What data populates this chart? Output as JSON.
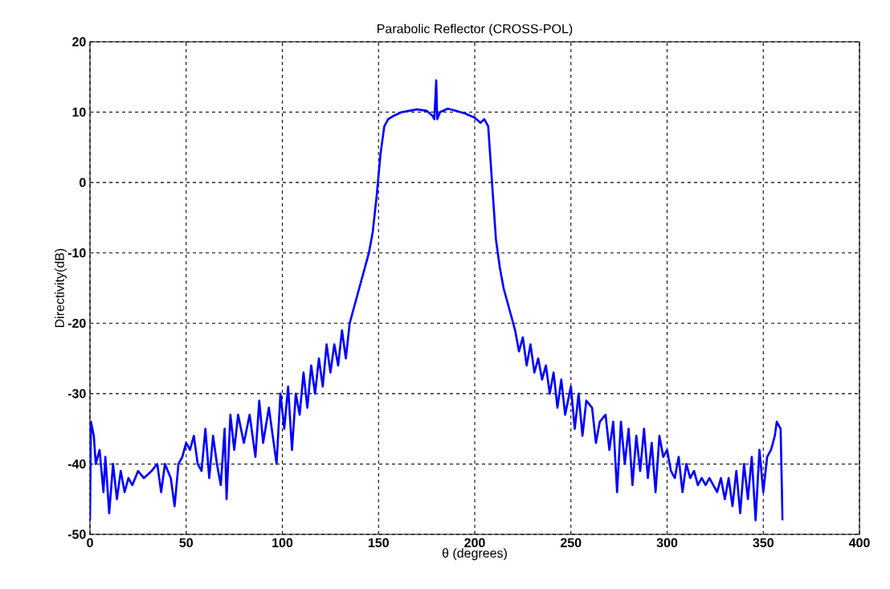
{
  "chart_data": {
    "type": "line",
    "title": "Parabolic Reflector (CROSS-POL)",
    "xlabel": "θ (degrees)",
    "ylabel": "Directivity(dB)",
    "x": [
      0,
      0.5,
      2,
      3,
      5,
      7,
      8,
      10,
      12,
      14,
      16,
      18,
      20,
      22,
      25,
      28,
      32,
      35,
      37,
      39,
      42,
      44,
      46,
      48,
      50,
      52,
      54,
      56,
      58,
      60,
      62,
      64,
      66,
      68,
      70,
      71,
      73,
      75,
      77,
      80,
      83,
      86,
      88,
      90,
      93,
      97,
      99,
      101,
      103,
      105,
      107,
      109,
      111,
      113,
      115,
      117,
      119,
      121,
      123,
      125,
      127,
      129,
      131,
      133,
      135,
      137,
      139,
      141,
      143,
      145,
      147,
      149,
      151,
      153,
      155,
      158,
      162,
      166,
      170,
      175,
      178,
      179,
      180,
      180.5,
      182,
      186,
      190,
      195,
      200,
      203,
      205,
      207,
      209,
      211,
      213,
      215,
      217,
      219,
      221,
      223,
      225,
      227,
      229,
      231,
      233,
      235,
      237,
      239,
      241,
      243,
      245,
      247,
      250,
      252,
      254,
      256,
      258,
      261,
      263,
      265,
      268,
      270,
      272,
      274,
      276,
      278,
      280,
      282,
      284,
      286,
      288,
      290,
      292,
      294,
      296,
      298,
      300,
      302,
      304,
      306,
      308,
      310,
      312,
      314,
      316,
      318,
      320,
      322,
      324,
      326,
      328,
      330,
      332,
      334,
      336,
      338,
      340,
      342,
      344,
      346,
      348,
      350,
      352,
      354,
      356,
      357,
      359,
      360
    ],
    "values": [
      -48,
      -34,
      -36,
      -40,
      -38,
      -44,
      -39,
      -47,
      -40,
      -45,
      -41,
      -44,
      -42,
      -43,
      -41,
      -42,
      -41,
      -40,
      -44,
      -40,
      -42,
      -46,
      -40,
      -39,
      -37,
      -38,
      -36,
      -40,
      -41,
      -35,
      -42,
      -36,
      -40,
      -43,
      -35,
      -45,
      -33,
      -38,
      -33,
      -37,
      -33,
      -39,
      -31,
      -37,
      -32,
      -40,
      -30,
      -35,
      -29,
      -38,
      -30,
      -33,
      -27,
      -32,
      -26,
      -30,
      -25,
      -29,
      -23,
      -27,
      -23,
      -26,
      -21,
      -25,
      -20,
      -18,
      -16,
      -14,
      -12,
      -10,
      -7,
      -2,
      4,
      8,
      9,
      9.5,
      10,
      10.2,
      10.4,
      10.2,
      9.5,
      9,
      14.5,
      9,
      10,
      10.5,
      10.2,
      9.8,
      9.2,
      8.5,
      9,
      8,
      0,
      -8,
      -12,
      -15,
      -17,
      -19,
      -21,
      -24,
      -22,
      -26,
      -23,
      -27,
      -25,
      -28,
      -26,
      -30,
      -27,
      -32,
      -28,
      -33,
      -29,
      -35,
      -30,
      -36,
      -31,
      -32,
      -37,
      -34,
      -33,
      -38,
      -34,
      -44,
      -34,
      -40,
      -35,
      -43,
      -36,
      -41,
      -35,
      -42,
      -37,
      -44,
      -36,
      -39,
      -38,
      -41,
      -42,
      -39,
      -44,
      -40,
      -42,
      -41,
      -43,
      -42,
      -43,
      -42,
      -43,
      -44,
      -42,
      -45,
      -42,
      -46,
      -41,
      -47,
      -40,
      -45,
      -39,
      -48,
      -38,
      -44,
      -39,
      -38,
      -36,
      -34,
      -35,
      -48
    ],
    "color": "#0000ff",
    "xlim": [
      0,
      400
    ],
    "ylim": [
      -50,
      20
    ],
    "xticks": [
      0,
      50,
      100,
      150,
      200,
      250,
      300,
      350,
      400
    ],
    "yticks": [
      -50,
      -40,
      -30,
      -20,
      -10,
      0,
      10,
      20
    ],
    "grid": true
  }
}
